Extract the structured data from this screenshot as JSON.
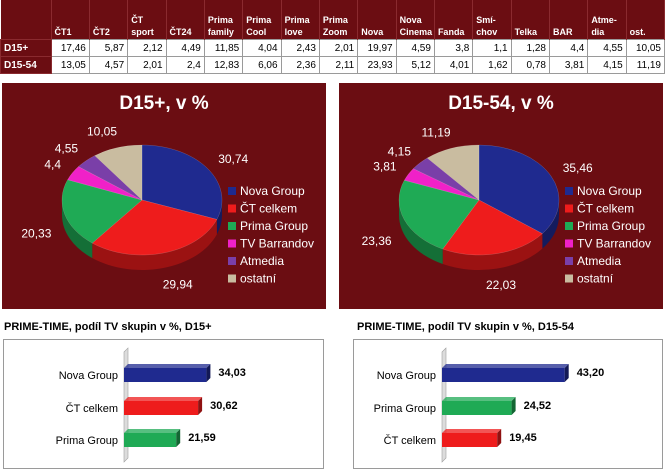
{
  "table": {
    "corner": "",
    "columns": [
      "ČT1",
      "ČT2",
      "ČT sport",
      "ČT24",
      "Prima family",
      "Prima Cool",
      "Prima love",
      "Prima Zoom",
      "Nova",
      "Nova Cinema",
      "Fanda",
      "Smí-chov",
      "Telka",
      "BAR",
      "Atme-dia",
      "ost."
    ],
    "rows": [
      {
        "label": "D15+",
        "values": [
          "17,46",
          "5,87",
          "2,12",
          "4,49",
          "11,85",
          "4,04",
          "2,43",
          "2,01",
          "19,97",
          "4,59",
          "3,8",
          "1,1",
          "1,28",
          "4,4",
          "4,55",
          "10,05"
        ]
      },
      {
        "label": "D15-54",
        "values": [
          "13,05",
          "4,57",
          "2,01",
          "2,4",
          "12,83",
          "6,06",
          "2,36",
          "2,11",
          "23,93",
          "5,12",
          "4,01",
          "1,62",
          "0,78",
          "3,81",
          "4,15",
          "11,19"
        ]
      }
    ]
  },
  "colors": {
    "Nova Group": "#1f2a8f",
    "ČT celkem": "#ee1c1c",
    "Prima Group": "#1faa55",
    "TV Barrandov": "#f021c8",
    "Atmedia": "#7a3fa8",
    "ostatní": "#c9bca0",
    "panel": "#6b0d12"
  },
  "chart_data": [
    {
      "type": "pie",
      "title": "D15+, v %",
      "legend_position": "right",
      "slices": [
        {
          "name": "Nova Group",
          "value": 30.74,
          "label": "30,74"
        },
        {
          "name": "ČT celkem",
          "value": 29.94,
          "label": "29,94"
        },
        {
          "name": "Prima Group",
          "value": 20.33,
          "label": "20,33"
        },
        {
          "name": "TV Barrandov",
          "value": 4.4,
          "label": "4,4"
        },
        {
          "name": "Atmedia",
          "value": 4.55,
          "label": "4,55"
        },
        {
          "name": "ostatní",
          "value": 10.05,
          "label": "10,05"
        }
      ]
    },
    {
      "type": "pie",
      "title": "D15-54, v %",
      "legend_position": "right",
      "slices": [
        {
          "name": "Nova Group",
          "value": 35.46,
          "label": "35,46"
        },
        {
          "name": "ČT celkem",
          "value": 22.03,
          "label": "22,03"
        },
        {
          "name": "Prima Group",
          "value": 23.36,
          "label": "23,36"
        },
        {
          "name": "TV Barrandov",
          "value": 3.81,
          "label": "3,81"
        },
        {
          "name": "Atmedia",
          "value": 4.15,
          "label": "4,15"
        },
        {
          "name": "ostatní",
          "value": 11.19,
          "label": "11,19"
        }
      ]
    },
    {
      "type": "bar",
      "orientation": "horizontal",
      "title": "PRIME-TIME, podíl TV skupin v %, D15+",
      "categories": [
        "Nova Group",
        "ČT celkem",
        "Prima Group"
      ],
      "values": [
        34.03,
        30.62,
        21.59
      ],
      "labels": [
        "34,03",
        "30,62",
        "21,59"
      ],
      "xlim": [
        0,
        50
      ]
    },
    {
      "type": "bar",
      "orientation": "horizontal",
      "title": "PRIME-TIME, podíl TV skupin v %, D15-54",
      "categories": [
        "Nova Group",
        "Prima Group",
        "ČT celkem"
      ],
      "values": [
        43.2,
        24.52,
        19.45
      ],
      "labels": [
        "43,20",
        "24,52",
        "19,45"
      ],
      "xlim": [
        0,
        50
      ]
    }
  ]
}
